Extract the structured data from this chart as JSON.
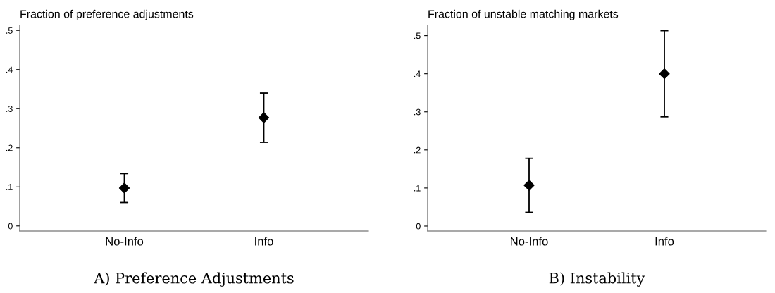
{
  "chart_data": [
    {
      "type": "scatter",
      "ylabel": "Fraction of preference adjustments",
      "xlabel": "A) Preference Adjustments",
      "categories": [
        "No-Info",
        "Info"
      ],
      "values": [
        0.097,
        0.277
      ],
      "errors": [
        [
          0.06,
          0.134
        ],
        [
          0.214,
          0.34
        ]
      ],
      "color": "#000000",
      "marker": "diamond",
      "ylim": [
        -0.013,
        0.513
      ],
      "yticks": [
        {
          "value": 0,
          "label": "0"
        },
        {
          "value": 0.1,
          "label": ".1"
        },
        {
          "value": 0.2,
          "label": ".2"
        },
        {
          "value": 0.3,
          "label": ".3"
        },
        {
          "value": 0.4,
          "label": ".4"
        },
        {
          "value": 0.5,
          "label": ".5"
        }
      ],
      "grid": false,
      "legend": false
    },
    {
      "type": "scatter",
      "ylabel": "Fraction of unstable matching markets",
      "xlabel": "B) Instability",
      "categories": [
        "No-Info",
        "Info"
      ],
      "values": [
        0.107,
        0.4
      ],
      "errors": [
        [
          0.036,
          0.178
        ],
        [
          0.287,
          0.513
        ]
      ],
      "color": "#000000",
      "marker": "diamond",
      "ylim": [
        -0.013,
        0.527
      ],
      "yticks": [
        {
          "value": 0,
          "label": "0"
        },
        {
          "value": 0.1,
          "label": ".1"
        },
        {
          "value": 0.2,
          "label": ".2"
        },
        {
          "value": 0.3,
          "label": ".3"
        },
        {
          "value": 0.4,
          "label": ".4"
        },
        {
          "value": 0.5,
          "label": ".5"
        }
      ],
      "grid": false,
      "legend": false
    }
  ]
}
